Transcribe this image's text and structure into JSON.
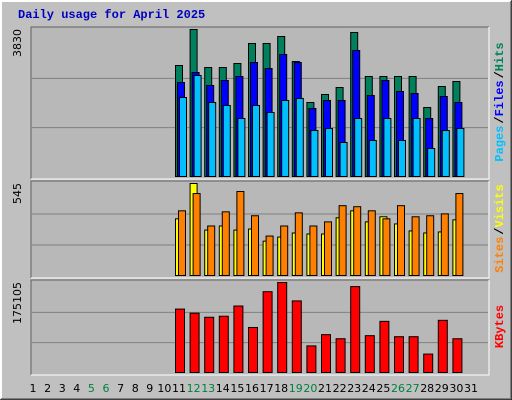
{
  "title": "Daily usage for April 2025",
  "chart_data": [
    {
      "type": "bar",
      "ylim": [
        0,
        3830
      ],
      "yticks": [
        3830
      ],
      "legend_separator": "/",
      "series": [
        {
          "name": "Hits",
          "color": "#00805c",
          "values": [
            0,
            0,
            0,
            0,
            0,
            0,
            0,
            0,
            0,
            0,
            2898,
            3830,
            2846,
            2846,
            2950,
            3468,
            3468,
            3649,
            3002,
            1941,
            2148,
            2329,
            3753,
            2614,
            2614,
            2614,
            2614,
            1811,
            2355,
            2484,
            0
          ]
        },
        {
          "name": "Files",
          "color": "#0000ff",
          "values": [
            0,
            0,
            0,
            0,
            0,
            0,
            0,
            0,
            0,
            0,
            2458,
            2717,
            2381,
            2510,
            2614,
            2976,
            2820,
            3183,
            2976,
            1786,
            1993,
            1993,
            3286,
            2122,
            2510,
            2226,
            2174,
            1527,
            2096,
            1941,
            0
          ]
        },
        {
          "name": "Pages",
          "color": "#00c0ff",
          "values": [
            0,
            0,
            0,
            0,
            0,
            0,
            0,
            0,
            0,
            0,
            2070,
            2640,
            1941,
            1864,
            1527,
            1864,
            1682,
            1993,
            2045,
            1216,
            1268,
            906,
            1527,
            958,
            1527,
            958,
            1527,
            751,
            1216,
            1268,
            0
          ]
        }
      ]
    },
    {
      "type": "bar",
      "ylim": [
        0,
        545
      ],
      "yticks": [
        545
      ],
      "legend_separator": "/",
      "series": [
        {
          "name": "Visits",
          "color": "#ffff00",
          "values": [
            0,
            0,
            0,
            0,
            0,
            0,
            0,
            0,
            0,
            0,
            338,
            545,
            272,
            296,
            272,
            278,
            207,
            231,
            255,
            249,
            249,
            344,
            385,
            320,
            350,
            308,
            267,
            255,
            261,
            332,
            0
          ]
        },
        {
          "name": "Sites",
          "color": "#ff8000",
          "values": [
            0,
            0,
            0,
            0,
            0,
            0,
            0,
            0,
            0,
            0,
            385,
            486,
            296,
            379,
            498,
            356,
            237,
            296,
            373,
            296,
            320,
            415,
            409,
            385,
            338,
            415,
            350,
            356,
            367,
            486,
            0
          ]
        }
      ]
    },
    {
      "type": "bar",
      "ylim": [
        0,
        175105
      ],
      "yticks": [
        175105
      ],
      "categories": [
        "1",
        "2",
        "3",
        "4",
        "5",
        "6",
        "7",
        "8",
        "9",
        "10",
        "11",
        "12",
        "13",
        "14",
        "15",
        "16",
        "17",
        "18",
        "19",
        "20",
        "21",
        "22",
        "23",
        "24",
        "25",
        "26",
        "27",
        "28",
        "29",
        "30",
        "31"
      ],
      "weekend_days": [
        4,
        5,
        11,
        12,
        18,
        19,
        25,
        26
      ],
      "weekend_color": "#008040",
      "series": [
        {
          "name": "KBytes",
          "color": "#ff0000",
          "values": [
            0,
            0,
            0,
            0,
            0,
            0,
            0,
            0,
            0,
            0,
            123962,
            116091,
            108220,
            110188,
            129865,
            88543,
            157395,
            175105,
            139703,
            53124,
            74766,
            66896,
            167234,
            72799,
            100349,
            70831,
            70831,
            37383,
            102316,
            66896,
            0
          ]
        }
      ]
    }
  ]
}
